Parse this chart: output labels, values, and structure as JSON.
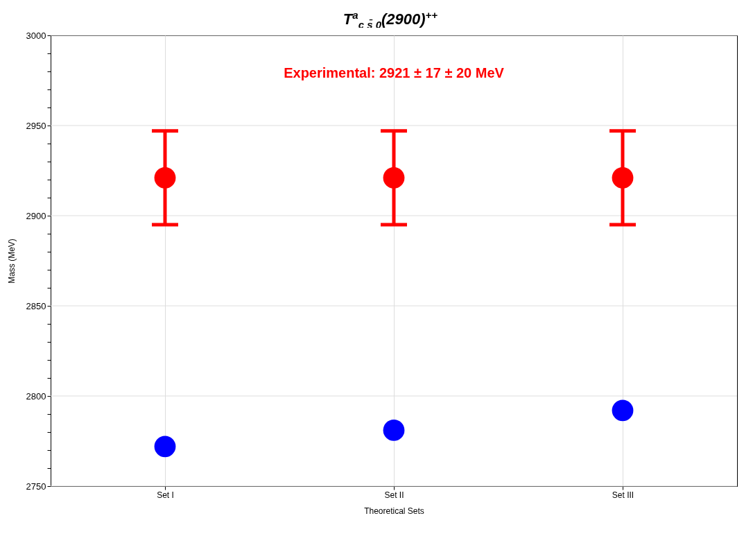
{
  "chart_data": {
    "type": "scatter",
    "title": "T$^{a}$$_{c s̄ 0}$(2900)$^{++}$",
    "xlabel": "Theoretical Sets",
    "ylabel": "Mass (MeV)",
    "categories": [
      "Set I",
      "Set II",
      "Set III"
    ],
    "series": [
      {
        "color": "#ff0000",
        "values": [
          2921,
          2921,
          2921
        ],
        "errors": [
          26,
          26,
          26
        ]
      },
      {
        "color": "#0000ff",
        "values": [
          2772,
          2781,
          2792
        ]
      }
    ],
    "ylim": [
      2750,
      3000
    ],
    "yticks": [
      2750,
      {
        "value": 2760,
        "label": null
      },
      {
        "value": 2770,
        "label": null
      },
      {
        "value": 2780,
        "label": null
      },
      {
        "value": 2790,
        "label": null
      },
      2800,
      {
        "value": 2810,
        "label": null
      },
      {
        "value": 2820,
        "label": null
      },
      {
        "value": 2830,
        "label": null
      },
      {
        "value": 2840,
        "label": null
      },
      2850,
      {
        "value": 2860,
        "label": null
      },
      {
        "value": 2870,
        "label": null
      },
      {
        "value": 2880,
        "label": null
      },
      {
        "value": 2890,
        "label": null
      },
      2900,
      {
        "value": 2910,
        "label": null
      },
      {
        "value": 2920,
        "label": null
      },
      {
        "value": 2930,
        "label": null
      },
      {
        "value": 2940,
        "label": null
      },
      2950,
      {
        "value": 2960,
        "label": null
      },
      {
        "value": 2970,
        "label": null
      },
      {
        "value": 2980,
        "label": null
      },
      {
        "value": 2990,
        "label": null
      },
      3000
    ],
    "annotations": [
      "Experimental: 2921 ± 17 ± 20 MeV"
    ],
    "grid": true,
    "marker": "circle"
  }
}
